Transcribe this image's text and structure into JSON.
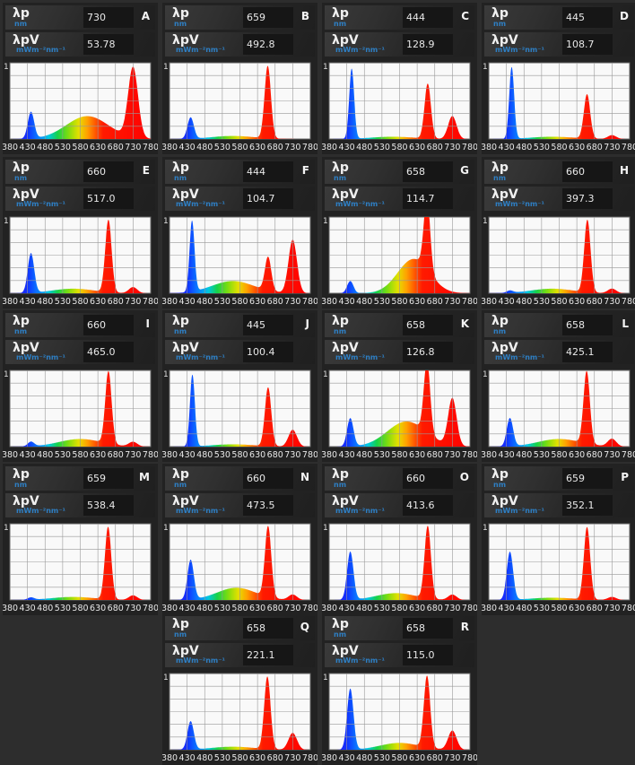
{
  "labels": {
    "peak": "λp",
    "peak_unit": "nm",
    "vis": "λpV",
    "vis_unit": "mWm⁻²nm⁻¹"
  },
  "axis": {
    "y_top": "1",
    "x_ticks": [
      "380",
      "430",
      "480",
      "530",
      "580",
      "630",
      "680",
      "730",
      "780"
    ]
  },
  "panels": [
    {
      "id": "A",
      "peak": "730",
      "vis": "53.78"
    },
    {
      "id": "B",
      "peak": "659",
      "vis": "492.8"
    },
    {
      "id": "C",
      "peak": "444",
      "vis": "128.9"
    },
    {
      "id": "D",
      "peak": "445",
      "vis": "108.7"
    },
    {
      "id": "E",
      "peak": "660",
      "vis": "517.0"
    },
    {
      "id": "F",
      "peak": "444",
      "vis": "104.7"
    },
    {
      "id": "G",
      "peak": "658",
      "vis": "114.7"
    },
    {
      "id": "H",
      "peak": "660",
      "vis": "397.3"
    },
    {
      "id": "I",
      "peak": "660",
      "vis": "465.0"
    },
    {
      "id": "J",
      "peak": "445",
      "vis": "100.4"
    },
    {
      "id": "K",
      "peak": "658",
      "vis": "126.8"
    },
    {
      "id": "L",
      "peak": "658",
      "vis": "425.1"
    },
    {
      "id": "M",
      "peak": "659",
      "vis": "538.4"
    },
    {
      "id": "N",
      "peak": "660",
      "vis": "473.5"
    },
    {
      "id": "O",
      "peak": "660",
      "vis": "413.6"
    },
    {
      "id": "P",
      "peak": "659",
      "vis": "352.1"
    },
    {
      "id": "Q",
      "peak": "658",
      "vis": "221.1"
    },
    {
      "id": "R",
      "peak": "658",
      "vis": "115.0"
    }
  ],
  "chart_data": [
    {
      "panel": "A",
      "type": "area",
      "x_range": [
        380,
        780
      ],
      "ylim": [
        0,
        1
      ],
      "components": [
        {
          "center": 440,
          "height": 0.35,
          "width": 9
        },
        {
          "center": 600,
          "height": 0.3,
          "width": 60
        },
        {
          "center": 730,
          "height": 0.92,
          "width": 14
        }
      ]
    },
    {
      "panel": "B",
      "type": "area",
      "x_range": [
        380,
        780
      ],
      "ylim": [
        0,
        1
      ],
      "components": [
        {
          "center": 440,
          "height": 0.28,
          "width": 9
        },
        {
          "center": 560,
          "height": 0.04,
          "width": 60
        },
        {
          "center": 659,
          "height": 0.95,
          "width": 9
        }
      ]
    },
    {
      "panel": "C",
      "type": "area",
      "x_range": [
        380,
        780
      ],
      "ylim": [
        0,
        1
      ],
      "components": [
        {
          "center": 444,
          "height": 0.92,
          "width": 7
        },
        {
          "center": 560,
          "height": 0.03,
          "width": 60
        },
        {
          "center": 660,
          "height": 0.72,
          "width": 9
        },
        {
          "center": 730,
          "height": 0.3,
          "width": 12
        }
      ]
    },
    {
      "panel": "D",
      "type": "area",
      "x_range": [
        380,
        780
      ],
      "ylim": [
        0,
        1
      ],
      "components": [
        {
          "center": 445,
          "height": 0.94,
          "width": 7
        },
        {
          "center": 560,
          "height": 0.03,
          "width": 60
        },
        {
          "center": 659,
          "height": 0.58,
          "width": 9
        },
        {
          "center": 730,
          "height": 0.05,
          "width": 12
        }
      ]
    },
    {
      "panel": "E",
      "type": "area",
      "x_range": [
        380,
        780
      ],
      "ylim": [
        0,
        1
      ],
      "components": [
        {
          "center": 440,
          "height": 0.52,
          "width": 9
        },
        {
          "center": 560,
          "height": 0.06,
          "width": 60
        },
        {
          "center": 660,
          "height": 0.95,
          "width": 9
        },
        {
          "center": 730,
          "height": 0.08,
          "width": 12
        }
      ]
    },
    {
      "panel": "F",
      "type": "area",
      "x_range": [
        380,
        780
      ],
      "ylim": [
        0,
        1
      ],
      "components": [
        {
          "center": 444,
          "height": 0.93,
          "width": 7
        },
        {
          "center": 560,
          "height": 0.16,
          "width": 60
        },
        {
          "center": 660,
          "height": 0.44,
          "width": 9
        },
        {
          "center": 730,
          "height": 0.7,
          "width": 12
        }
      ]
    },
    {
      "panel": "G",
      "type": "area",
      "x_range": [
        380,
        780
      ],
      "ylim": [
        0,
        1
      ],
      "components": [
        {
          "center": 440,
          "height": 0.16,
          "width": 9
        },
        {
          "center": 620,
          "height": 0.45,
          "width": 45
        },
        {
          "center": 658,
          "height": 0.94,
          "width": 9
        }
      ]
    },
    {
      "panel": "H",
      "type": "area",
      "x_range": [
        380,
        780
      ],
      "ylim": [
        0,
        1
      ],
      "components": [
        {
          "center": 440,
          "height": 0.03,
          "width": 9
        },
        {
          "center": 560,
          "height": 0.06,
          "width": 60
        },
        {
          "center": 660,
          "height": 0.95,
          "width": 9
        },
        {
          "center": 730,
          "height": 0.06,
          "width": 12
        }
      ]
    },
    {
      "panel": "I",
      "type": "area",
      "x_range": [
        380,
        780
      ],
      "ylim": [
        0,
        1
      ],
      "components": [
        {
          "center": 440,
          "height": 0.06,
          "width": 9
        },
        {
          "center": 580,
          "height": 0.1,
          "width": 60
        },
        {
          "center": 660,
          "height": 0.95,
          "width": 9
        },
        {
          "center": 730,
          "height": 0.06,
          "width": 12
        }
      ]
    },
    {
      "panel": "J",
      "type": "area",
      "x_range": [
        380,
        780
      ],
      "ylim": [
        0,
        1
      ],
      "components": [
        {
          "center": 445,
          "height": 0.94,
          "width": 7
        },
        {
          "center": 560,
          "height": 0.03,
          "width": 60
        },
        {
          "center": 660,
          "height": 0.77,
          "width": 9
        },
        {
          "center": 730,
          "height": 0.22,
          "width": 12
        }
      ]
    },
    {
      "panel": "K",
      "type": "area",
      "x_range": [
        380,
        780
      ],
      "ylim": [
        0,
        1
      ],
      "components": [
        {
          "center": 440,
          "height": 0.37,
          "width": 9
        },
        {
          "center": 600,
          "height": 0.33,
          "width": 55
        },
        {
          "center": 658,
          "height": 0.93,
          "width": 9
        },
        {
          "center": 730,
          "height": 0.62,
          "width": 12
        }
      ]
    },
    {
      "panel": "L",
      "type": "area",
      "x_range": [
        380,
        780
      ],
      "ylim": [
        0,
        1
      ],
      "components": [
        {
          "center": 440,
          "height": 0.37,
          "width": 9
        },
        {
          "center": 580,
          "height": 0.1,
          "width": 60
        },
        {
          "center": 658,
          "height": 0.95,
          "width": 9
        },
        {
          "center": 730,
          "height": 0.1,
          "width": 12
        }
      ]
    },
    {
      "panel": "M",
      "type": "area",
      "x_range": [
        380,
        780
      ],
      "ylim": [
        0,
        1
      ],
      "components": [
        {
          "center": 440,
          "height": 0.03,
          "width": 9
        },
        {
          "center": 560,
          "height": 0.04,
          "width": 60
        },
        {
          "center": 659,
          "height": 0.95,
          "width": 9
        },
        {
          "center": 730,
          "height": 0.06,
          "width": 12
        }
      ]
    },
    {
      "panel": "N",
      "type": "area",
      "x_range": [
        380,
        780
      ],
      "ylim": [
        0,
        1
      ],
      "components": [
        {
          "center": 440,
          "height": 0.52,
          "width": 9
        },
        {
          "center": 570,
          "height": 0.16,
          "width": 55
        },
        {
          "center": 660,
          "height": 0.93,
          "width": 9
        },
        {
          "center": 730,
          "height": 0.07,
          "width": 12
        }
      ]
    },
    {
      "panel": "O",
      "type": "area",
      "x_range": [
        380,
        780
      ],
      "ylim": [
        0,
        1
      ],
      "components": [
        {
          "center": 440,
          "height": 0.63,
          "width": 9
        },
        {
          "center": 570,
          "height": 0.09,
          "width": 55
        },
        {
          "center": 660,
          "height": 0.95,
          "width": 9
        },
        {
          "center": 730,
          "height": 0.07,
          "width": 12
        }
      ]
    },
    {
      "panel": "P",
      "type": "area",
      "x_range": [
        380,
        780
      ],
      "ylim": [
        0,
        1
      ],
      "components": [
        {
          "center": 440,
          "height": 0.63,
          "width": 9
        },
        {
          "center": 560,
          "height": 0.03,
          "width": 60
        },
        {
          "center": 659,
          "height": 0.95,
          "width": 9
        },
        {
          "center": 730,
          "height": 0.04,
          "width": 12
        }
      ]
    },
    {
      "panel": "Q",
      "type": "area",
      "x_range": [
        380,
        780
      ],
      "ylim": [
        0,
        1
      ],
      "components": [
        {
          "center": 440,
          "height": 0.37,
          "width": 9
        },
        {
          "center": 560,
          "height": 0.04,
          "width": 60
        },
        {
          "center": 658,
          "height": 0.95,
          "width": 9
        },
        {
          "center": 730,
          "height": 0.22,
          "width": 12
        }
      ]
    },
    {
      "panel": "R",
      "type": "area",
      "x_range": [
        380,
        780
      ],
      "ylim": [
        0,
        1
      ],
      "components": [
        {
          "center": 440,
          "height": 0.8,
          "width": 9
        },
        {
          "center": 580,
          "height": 0.09,
          "width": 55
        },
        {
          "center": 658,
          "height": 0.94,
          "width": 9
        },
        {
          "center": 730,
          "height": 0.25,
          "width": 12
        }
      ]
    }
  ]
}
